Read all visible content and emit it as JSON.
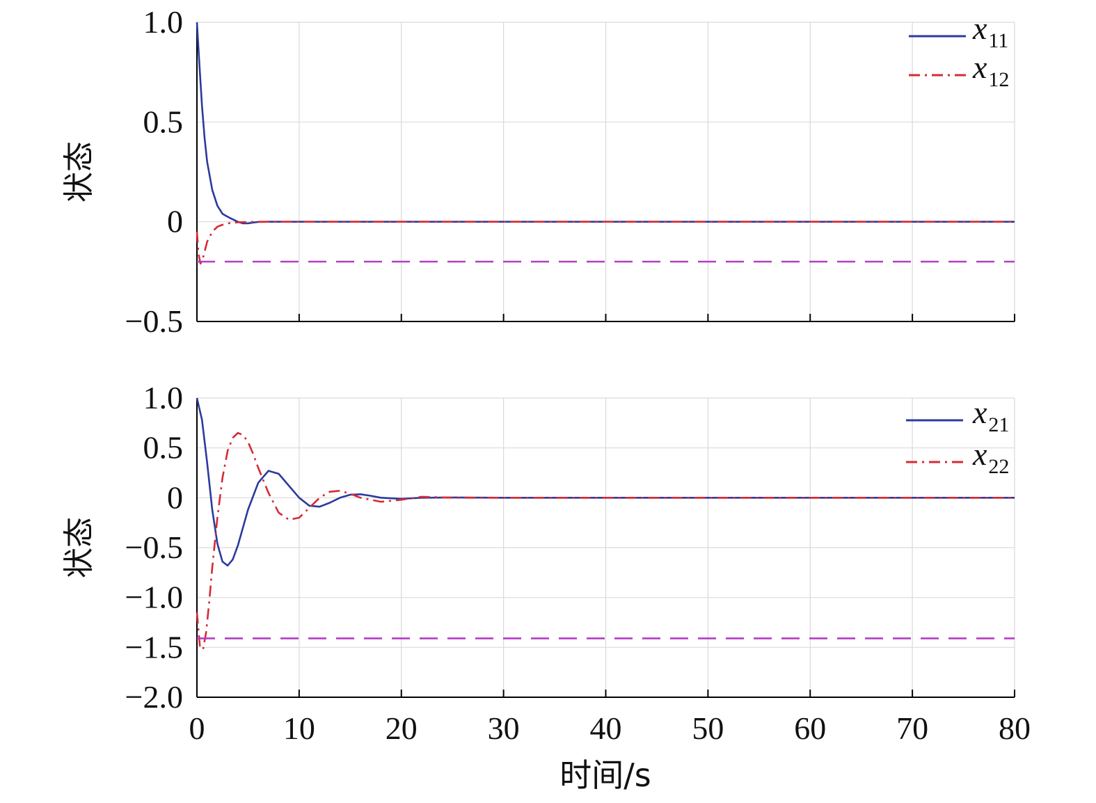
{
  "xlabel": "时间/s",
  "chart_data": [
    {
      "type": "line",
      "ylabel": "状态",
      "xlim": [
        0,
        80
      ],
      "ylim": [
        -0.5,
        1.0
      ],
      "xticks": [
        0,
        10,
        20,
        30,
        40,
        50,
        60,
        70,
        80
      ],
      "xtick_labels_visible": false,
      "yticks": [
        1.0,
        0.5,
        0,
        -0.5
      ],
      "ytick_labels": [
        "1.0",
        "0.5",
        "0",
        "−0.5"
      ],
      "grid": true,
      "legend_position": "top-right",
      "series": [
        {
          "name_main": "x",
          "name_sub": "11",
          "color": "#2b3a9e",
          "style": "solid",
          "x": [
            0,
            0.25,
            0.5,
            0.75,
            1,
            1.5,
            2,
            2.5,
            3,
            3.5,
            4,
            4.5,
            5,
            5.5,
            6,
            7,
            8,
            10,
            80
          ],
          "y": [
            1.0,
            0.78,
            0.58,
            0.42,
            0.3,
            0.16,
            0.08,
            0.04,
            0.025,
            0.012,
            0.0,
            -0.008,
            -0.008,
            -0.004,
            -0.001,
            0,
            0,
            0,
            0
          ]
        },
        {
          "name_main": "x",
          "name_sub": "12",
          "color": "#d62a35",
          "style": "dashdot",
          "x": [
            0,
            0.15,
            0.35,
            0.6,
            1,
            1.5,
            2,
            2.5,
            3,
            4,
            5,
            6,
            8,
            80
          ],
          "y": [
            -0.05,
            -0.16,
            -0.21,
            -0.18,
            -0.1,
            -0.05,
            -0.025,
            -0.015,
            -0.008,
            -0.003,
            -0.001,
            0,
            0,
            0
          ]
        },
        {
          "color": "#b43cc3",
          "style": "dashed",
          "x": [
            0,
            80
          ],
          "y": [
            -0.2,
            -0.2
          ]
        }
      ]
    },
    {
      "type": "line",
      "ylabel": "状态",
      "xlim": [
        0,
        80
      ],
      "ylim": [
        -2.0,
        1.0
      ],
      "xticks": [
        0,
        10,
        20,
        30,
        40,
        50,
        60,
        70,
        80
      ],
      "xtick_labels": [
        "0",
        "10",
        "20",
        "30",
        "40",
        "50",
        "60",
        "70",
        "80"
      ],
      "yticks": [
        1.0,
        0.5,
        0,
        -0.5,
        -1.0,
        -1.5,
        -2.0
      ],
      "ytick_labels": [
        "1.0",
        "0.5",
        "0",
        "−0.5",
        "−1.0",
        "−1.5",
        "−2.0"
      ],
      "grid": true,
      "legend_position": "top-right",
      "series": [
        {
          "name_main": "x",
          "name_sub": "21",
          "color": "#2b3a9e",
          "style": "solid",
          "x": [
            0,
            0.5,
            1,
            1.5,
            2,
            2.5,
            3,
            3.5,
            4,
            5,
            6,
            7,
            8,
            9,
            10,
            11,
            12,
            13,
            14,
            15,
            16,
            17,
            18,
            20,
            22,
            25,
            30,
            80
          ],
          "y": [
            1.0,
            0.78,
            0.35,
            -0.12,
            -0.46,
            -0.64,
            -0.68,
            -0.62,
            -0.48,
            -0.12,
            0.15,
            0.27,
            0.24,
            0.12,
            0.0,
            -0.08,
            -0.09,
            -0.05,
            0.0,
            0.03,
            0.035,
            0.02,
            0.0,
            -0.01,
            0.0,
            0.003,
            0,
            0
          ]
        },
        {
          "name_main": "x",
          "name_sub": "22",
          "color": "#d62a35",
          "style": "dashdot",
          "x": [
            0,
            0.3,
            0.6,
            0.9,
            1.2,
            1.5,
            2,
            2.5,
            3,
            3.5,
            4,
            4.5,
            5,
            5.5,
            6,
            7,
            8,
            9,
            10,
            11,
            12,
            13,
            14,
            15,
            16,
            18,
            20,
            22,
            25,
            30,
            80
          ],
          "y": [
            -1.15,
            -1.5,
            -1.52,
            -1.35,
            -1.05,
            -0.7,
            -0.2,
            0.2,
            0.47,
            0.6,
            0.65,
            0.63,
            0.56,
            0.44,
            0.3,
            0.05,
            -0.15,
            -0.22,
            -0.2,
            -0.1,
            0.0,
            0.06,
            0.07,
            0.04,
            0.0,
            -0.04,
            -0.02,
            0.01,
            0.0,
            0,
            0
          ]
        },
        {
          "color": "#b43cc3",
          "style": "dashed",
          "x": [
            0,
            80
          ],
          "y": [
            -1.41,
            -1.41
          ]
        }
      ]
    }
  ]
}
